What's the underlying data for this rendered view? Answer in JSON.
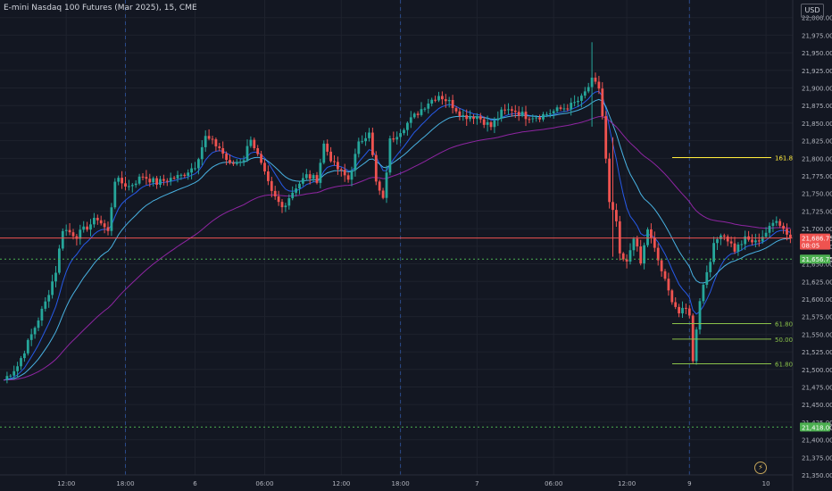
{
  "header": {
    "title": "E-mini Nasdaq 100 Futures (Mar 2025), 15, CME",
    "currency_label": "USD"
  },
  "colors": {
    "background": "#131722",
    "grid": "#1e222d",
    "text": "#b2b5be",
    "up": "#26a69a",
    "down": "#ef5350",
    "ema_fast": "#2962ff",
    "ema_mid": "#4fc3f7",
    "ema_slow": "#9c27b0",
    "price_line": "#ef5350",
    "support": "#4caf50",
    "fib_ext": "#ffeb3b",
    "fib": "#8bc34a"
  },
  "chart_data": {
    "type": "candlestick",
    "instrument": "E-mini Nasdaq 100 Futures (Mar 2025)",
    "interval": "15",
    "exchange": "CME",
    "currency": "USD",
    "ylim": [
      21350,
      22025
    ],
    "y_ticks": [
      22000,
      21975,
      21950,
      21925,
      21900,
      21875,
      21850,
      21825,
      21800,
      21775,
      21750,
      21725,
      21700,
      21675,
      21650,
      21625,
      21600,
      21575,
      21550,
      21525,
      21500,
      21475,
      21450,
      21425,
      21400,
      21375,
      21350
    ],
    "x_ticks": [
      {
        "label": "12:00",
        "bar": 18
      },
      {
        "label": "18:00",
        "bar": 35
      },
      {
        "label": "6",
        "bar": 55
      },
      {
        "label": "06:00",
        "bar": 75
      },
      {
        "label": "12:00",
        "bar": 97
      },
      {
        "label": "18:00",
        "bar": 114
      },
      {
        "label": "7",
        "bar": 136
      },
      {
        "label": "06:00",
        "bar": 158
      },
      {
        "label": "12:00",
        "bar": 179
      },
      {
        "label": "9",
        "bar": 197
      },
      {
        "label": "10",
        "bar": 219
      }
    ],
    "session_breaks": [
      35,
      114,
      197
    ],
    "bars_total": 226,
    "anchors": [
      [
        0,
        21485
      ],
      [
        4,
        21505
      ],
      [
        9,
        21560
      ],
      [
        12,
        21595
      ],
      [
        15,
        21640
      ],
      [
        17,
        21700
      ],
      [
        21,
        21690
      ],
      [
        27,
        21715
      ],
      [
        30,
        21695
      ],
      [
        32,
        21770
      ],
      [
        36,
        21760
      ],
      [
        40,
        21775
      ],
      [
        44,
        21765
      ],
      [
        47,
        21770
      ],
      [
        51,
        21775
      ],
      [
        55,
        21790
      ],
      [
        58,
        21830
      ],
      [
        62,
        21815
      ],
      [
        65,
        21790
      ],
      [
        69,
        21800
      ],
      [
        71,
        21830
      ],
      [
        74,
        21790
      ],
      [
        77,
        21750
      ],
      [
        80,
        21730
      ],
      [
        84,
        21760
      ],
      [
        87,
        21775
      ],
      [
        90,
        21770
      ],
      [
        92,
        21820
      ],
      [
        95,
        21790
      ],
      [
        99,
        21770
      ],
      [
        102,
        21820
      ],
      [
        105,
        21840
      ],
      [
        107,
        21765
      ],
      [
        109,
        21740
      ],
      [
        111,
        21825
      ],
      [
        114,
        21840
      ],
      [
        118,
        21860
      ],
      [
        122,
        21880
      ],
      [
        125,
        21890
      ],
      [
        128,
        21880
      ],
      [
        132,
        21860
      ],
      [
        136,
        21860
      ],
      [
        140,
        21845
      ],
      [
        143,
        21865
      ],
      [
        146,
        21870
      ],
      [
        150,
        21860
      ],
      [
        154,
        21860
      ],
      [
        157,
        21865
      ],
      [
        160,
        21870
      ],
      [
        163,
        21875
      ],
      [
        166,
        21885
      ],
      [
        169,
        21910
      ],
      [
        171,
        21900
      ],
      [
        172,
        21860
      ],
      [
        174,
        21735
      ],
      [
        176,
        21710
      ],
      [
        177,
        21660
      ],
      [
        179,
        21650
      ],
      [
        181,
        21690
      ],
      [
        183,
        21650
      ],
      [
        185,
        21700
      ],
      [
        187,
        21670
      ],
      [
        189,
        21640
      ],
      [
        191,
        21610
      ],
      [
        193,
        21590
      ],
      [
        194,
        21580
      ],
      [
        196,
        21585
      ],
      [
        197,
        21580
      ],
      [
        198,
        21510
      ],
      [
        199,
        21560
      ],
      [
        200,
        21600
      ],
      [
        202,
        21640
      ],
      [
        204,
        21675
      ],
      [
        206,
        21695
      ],
      [
        208,
        21685
      ],
      [
        210,
        21670
      ],
      [
        213,
        21685
      ],
      [
        216,
        21680
      ],
      [
        218,
        21690
      ],
      [
        220,
        21700
      ],
      [
        222,
        21715
      ],
      [
        224,
        21700
      ],
      [
        226,
        21688
      ]
    ],
    "series": [
      {
        "name": "EMA fast",
        "color": "#2962ff"
      },
      {
        "name": "EMA mid",
        "color": "#4fc3f7"
      },
      {
        "name": "EMA slow",
        "color": "#9c27b0"
      }
    ],
    "price_lines": [
      {
        "kind": "last-price",
        "price": 21686.75,
        "label": "21,686.75",
        "sublabel": "08:05",
        "color": "#ef5350"
      },
      {
        "kind": "support",
        "price": 21656.75,
        "label": "21,656.75",
        "color": "#4caf50"
      },
      {
        "kind": "support",
        "price": 21418.0,
        "label": "21,418.00",
        "color": "#4caf50"
      }
    ],
    "fib_levels": [
      {
        "label": "161.80%",
        "price": 21801,
        "color": "#ffeb3b"
      },
      {
        "label": "61.80%",
        "price": 21565,
        "color": "#8bc34a"
      },
      {
        "label": "50.00%",
        "price": 21543,
        "color": "#8bc34a"
      },
      {
        "label": "61.80%",
        "price": 21508,
        "color": "#8bc34a"
      }
    ]
  }
}
